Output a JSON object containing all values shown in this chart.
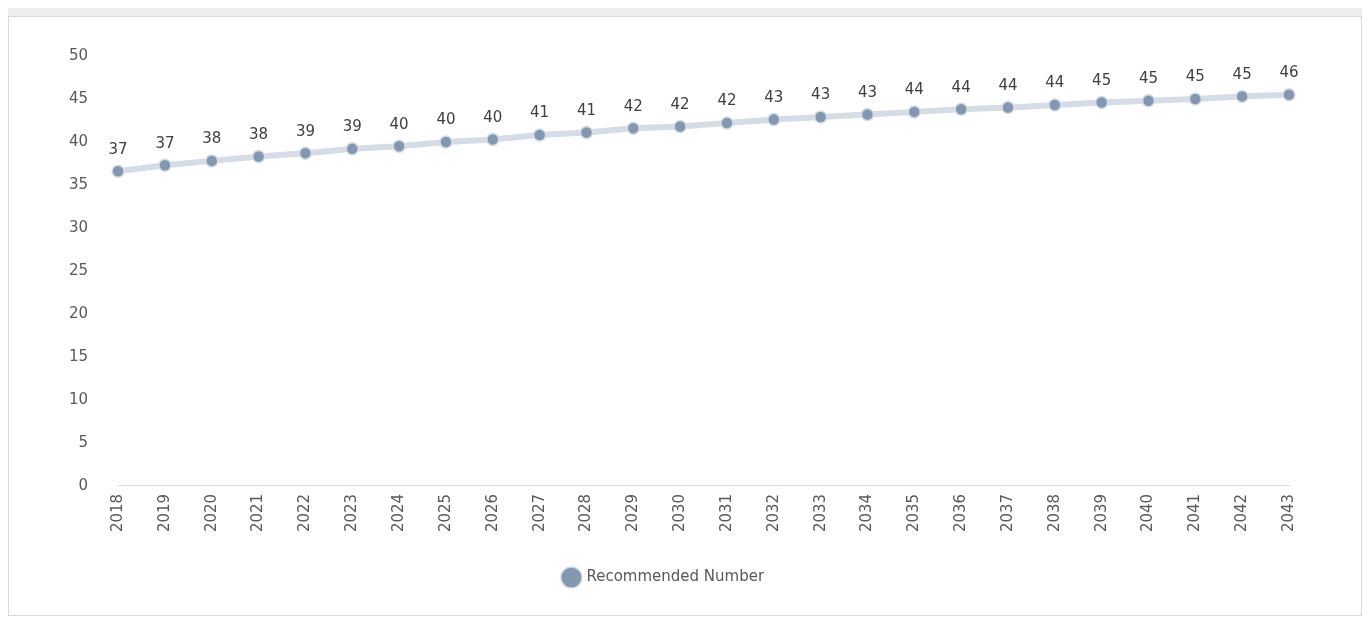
{
  "chart_data": {
    "type": "line",
    "categories": [
      "2018",
      "2019",
      "2020",
      "2021",
      "2022",
      "2023",
      "2024",
      "2025",
      "2026",
      "2027",
      "2028",
      "2029",
      "2030",
      "2031",
      "2032",
      "2033",
      "2034",
      "2035",
      "2036",
      "2037",
      "2038",
      "2039",
      "2040",
      "2041",
      "2042",
      "2043"
    ],
    "series": [
      {
        "name": "Recommended Number",
        "color": "#8497b0",
        "values": [
          36.6,
          37.3,
          37.8,
          38.3,
          38.7,
          39.2,
          39.5,
          40.0,
          40.3,
          40.8,
          41.1,
          41.6,
          41.8,
          42.2,
          42.6,
          42.9,
          43.2,
          43.5,
          43.8,
          44.0,
          44.3,
          44.6,
          44.8,
          45.0,
          45.3,
          45.5
        ],
        "value_labels": [
          "37",
          "37",
          "38",
          "38",
          "39",
          "39",
          "40",
          "40",
          "40",
          "41",
          "41",
          "42",
          "42",
          "42",
          "43",
          "43",
          "43",
          "44",
          "44",
          "44",
          "44",
          "45",
          "45",
          "45",
          "45",
          "46"
        ]
      }
    ],
    "ylim": [
      0,
      50
    ],
    "yticks": [
      0,
      5,
      10,
      15,
      20,
      25,
      30,
      35,
      40,
      45,
      50
    ],
    "grid": false,
    "legend": "bottom",
    "marker": "circle",
    "line_style": "solid"
  }
}
